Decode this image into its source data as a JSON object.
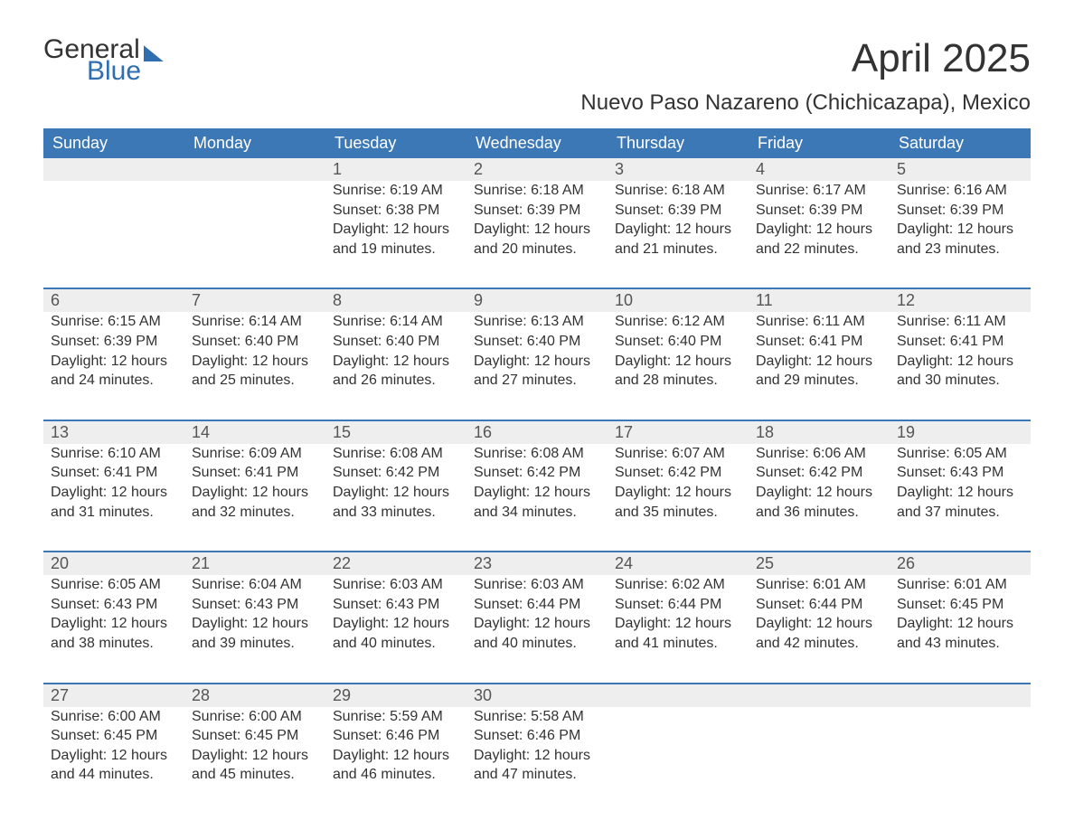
{
  "logo": {
    "text1": "General",
    "text2": "Blue"
  },
  "title": "April 2025",
  "subtitle": "Nuevo Paso Nazareno (Chichicazapa), Mexico",
  "colors": {
    "header_bg": "#3b78b5",
    "header_text": "#ffffff",
    "row_divider": "#3b78b5",
    "daynum_bg": "#eeeeee",
    "text": "#333333",
    "logo_blue": "#2f6fb0"
  },
  "typography": {
    "title_fontsize": 44,
    "subtitle_fontsize": 24,
    "header_fontsize": 18,
    "body_fontsize": 16,
    "font_family": "Segoe UI"
  },
  "day_headers": [
    "Sunday",
    "Monday",
    "Tuesday",
    "Wednesday",
    "Thursday",
    "Friday",
    "Saturday"
  ],
  "labels": {
    "sunrise": "Sunrise:",
    "sunset": "Sunset:",
    "daylight": "Daylight:"
  },
  "weeks": [
    {
      "days": [
        {
          "num": "",
          "sunrise": "",
          "sunset": "",
          "daylight": ""
        },
        {
          "num": "",
          "sunrise": "",
          "sunset": "",
          "daylight": ""
        },
        {
          "num": "1",
          "sunrise": "6:19 AM",
          "sunset": "6:38 PM",
          "daylight": "12 hours and 19 minutes."
        },
        {
          "num": "2",
          "sunrise": "6:18 AM",
          "sunset": "6:39 PM",
          "daylight": "12 hours and 20 minutes."
        },
        {
          "num": "3",
          "sunrise": "6:18 AM",
          "sunset": "6:39 PM",
          "daylight": "12 hours and 21 minutes."
        },
        {
          "num": "4",
          "sunrise": "6:17 AM",
          "sunset": "6:39 PM",
          "daylight": "12 hours and 22 minutes."
        },
        {
          "num": "5",
          "sunrise": "6:16 AM",
          "sunset": "6:39 PM",
          "daylight": "12 hours and 23 minutes."
        }
      ]
    },
    {
      "days": [
        {
          "num": "6",
          "sunrise": "6:15 AM",
          "sunset": "6:39 PM",
          "daylight": "12 hours and 24 minutes."
        },
        {
          "num": "7",
          "sunrise": "6:14 AM",
          "sunset": "6:40 PM",
          "daylight": "12 hours and 25 minutes."
        },
        {
          "num": "8",
          "sunrise": "6:14 AM",
          "sunset": "6:40 PM",
          "daylight": "12 hours and 26 minutes."
        },
        {
          "num": "9",
          "sunrise": "6:13 AM",
          "sunset": "6:40 PM",
          "daylight": "12 hours and 27 minutes."
        },
        {
          "num": "10",
          "sunrise": "6:12 AM",
          "sunset": "6:40 PM",
          "daylight": "12 hours and 28 minutes."
        },
        {
          "num": "11",
          "sunrise": "6:11 AM",
          "sunset": "6:41 PM",
          "daylight": "12 hours and 29 minutes."
        },
        {
          "num": "12",
          "sunrise": "6:11 AM",
          "sunset": "6:41 PM",
          "daylight": "12 hours and 30 minutes."
        }
      ]
    },
    {
      "days": [
        {
          "num": "13",
          "sunrise": "6:10 AM",
          "sunset": "6:41 PM",
          "daylight": "12 hours and 31 minutes."
        },
        {
          "num": "14",
          "sunrise": "6:09 AM",
          "sunset": "6:41 PM",
          "daylight": "12 hours and 32 minutes."
        },
        {
          "num": "15",
          "sunrise": "6:08 AM",
          "sunset": "6:42 PM",
          "daylight": "12 hours and 33 minutes."
        },
        {
          "num": "16",
          "sunrise": "6:08 AM",
          "sunset": "6:42 PM",
          "daylight": "12 hours and 34 minutes."
        },
        {
          "num": "17",
          "sunrise": "6:07 AM",
          "sunset": "6:42 PM",
          "daylight": "12 hours and 35 minutes."
        },
        {
          "num": "18",
          "sunrise": "6:06 AM",
          "sunset": "6:42 PM",
          "daylight": "12 hours and 36 minutes."
        },
        {
          "num": "19",
          "sunrise": "6:05 AM",
          "sunset": "6:43 PM",
          "daylight": "12 hours and 37 minutes."
        }
      ]
    },
    {
      "days": [
        {
          "num": "20",
          "sunrise": "6:05 AM",
          "sunset": "6:43 PM",
          "daylight": "12 hours and 38 minutes."
        },
        {
          "num": "21",
          "sunrise": "6:04 AM",
          "sunset": "6:43 PM",
          "daylight": "12 hours and 39 minutes."
        },
        {
          "num": "22",
          "sunrise": "6:03 AM",
          "sunset": "6:43 PM",
          "daylight": "12 hours and 40 minutes."
        },
        {
          "num": "23",
          "sunrise": "6:03 AM",
          "sunset": "6:44 PM",
          "daylight": "12 hours and 40 minutes."
        },
        {
          "num": "24",
          "sunrise": "6:02 AM",
          "sunset": "6:44 PM",
          "daylight": "12 hours and 41 minutes."
        },
        {
          "num": "25",
          "sunrise": "6:01 AM",
          "sunset": "6:44 PM",
          "daylight": "12 hours and 42 minutes."
        },
        {
          "num": "26",
          "sunrise": "6:01 AM",
          "sunset": "6:45 PM",
          "daylight": "12 hours and 43 minutes."
        }
      ]
    },
    {
      "days": [
        {
          "num": "27",
          "sunrise": "6:00 AM",
          "sunset": "6:45 PM",
          "daylight": "12 hours and 44 minutes."
        },
        {
          "num": "28",
          "sunrise": "6:00 AM",
          "sunset": "6:45 PM",
          "daylight": "12 hours and 45 minutes."
        },
        {
          "num": "29",
          "sunrise": "5:59 AM",
          "sunset": "6:46 PM",
          "daylight": "12 hours and 46 minutes."
        },
        {
          "num": "30",
          "sunrise": "5:58 AM",
          "sunset": "6:46 PM",
          "daylight": "12 hours and 47 minutes."
        },
        {
          "num": "",
          "sunrise": "",
          "sunset": "",
          "daylight": ""
        },
        {
          "num": "",
          "sunrise": "",
          "sunset": "",
          "daylight": ""
        },
        {
          "num": "",
          "sunrise": "",
          "sunset": "",
          "daylight": ""
        }
      ]
    }
  ]
}
